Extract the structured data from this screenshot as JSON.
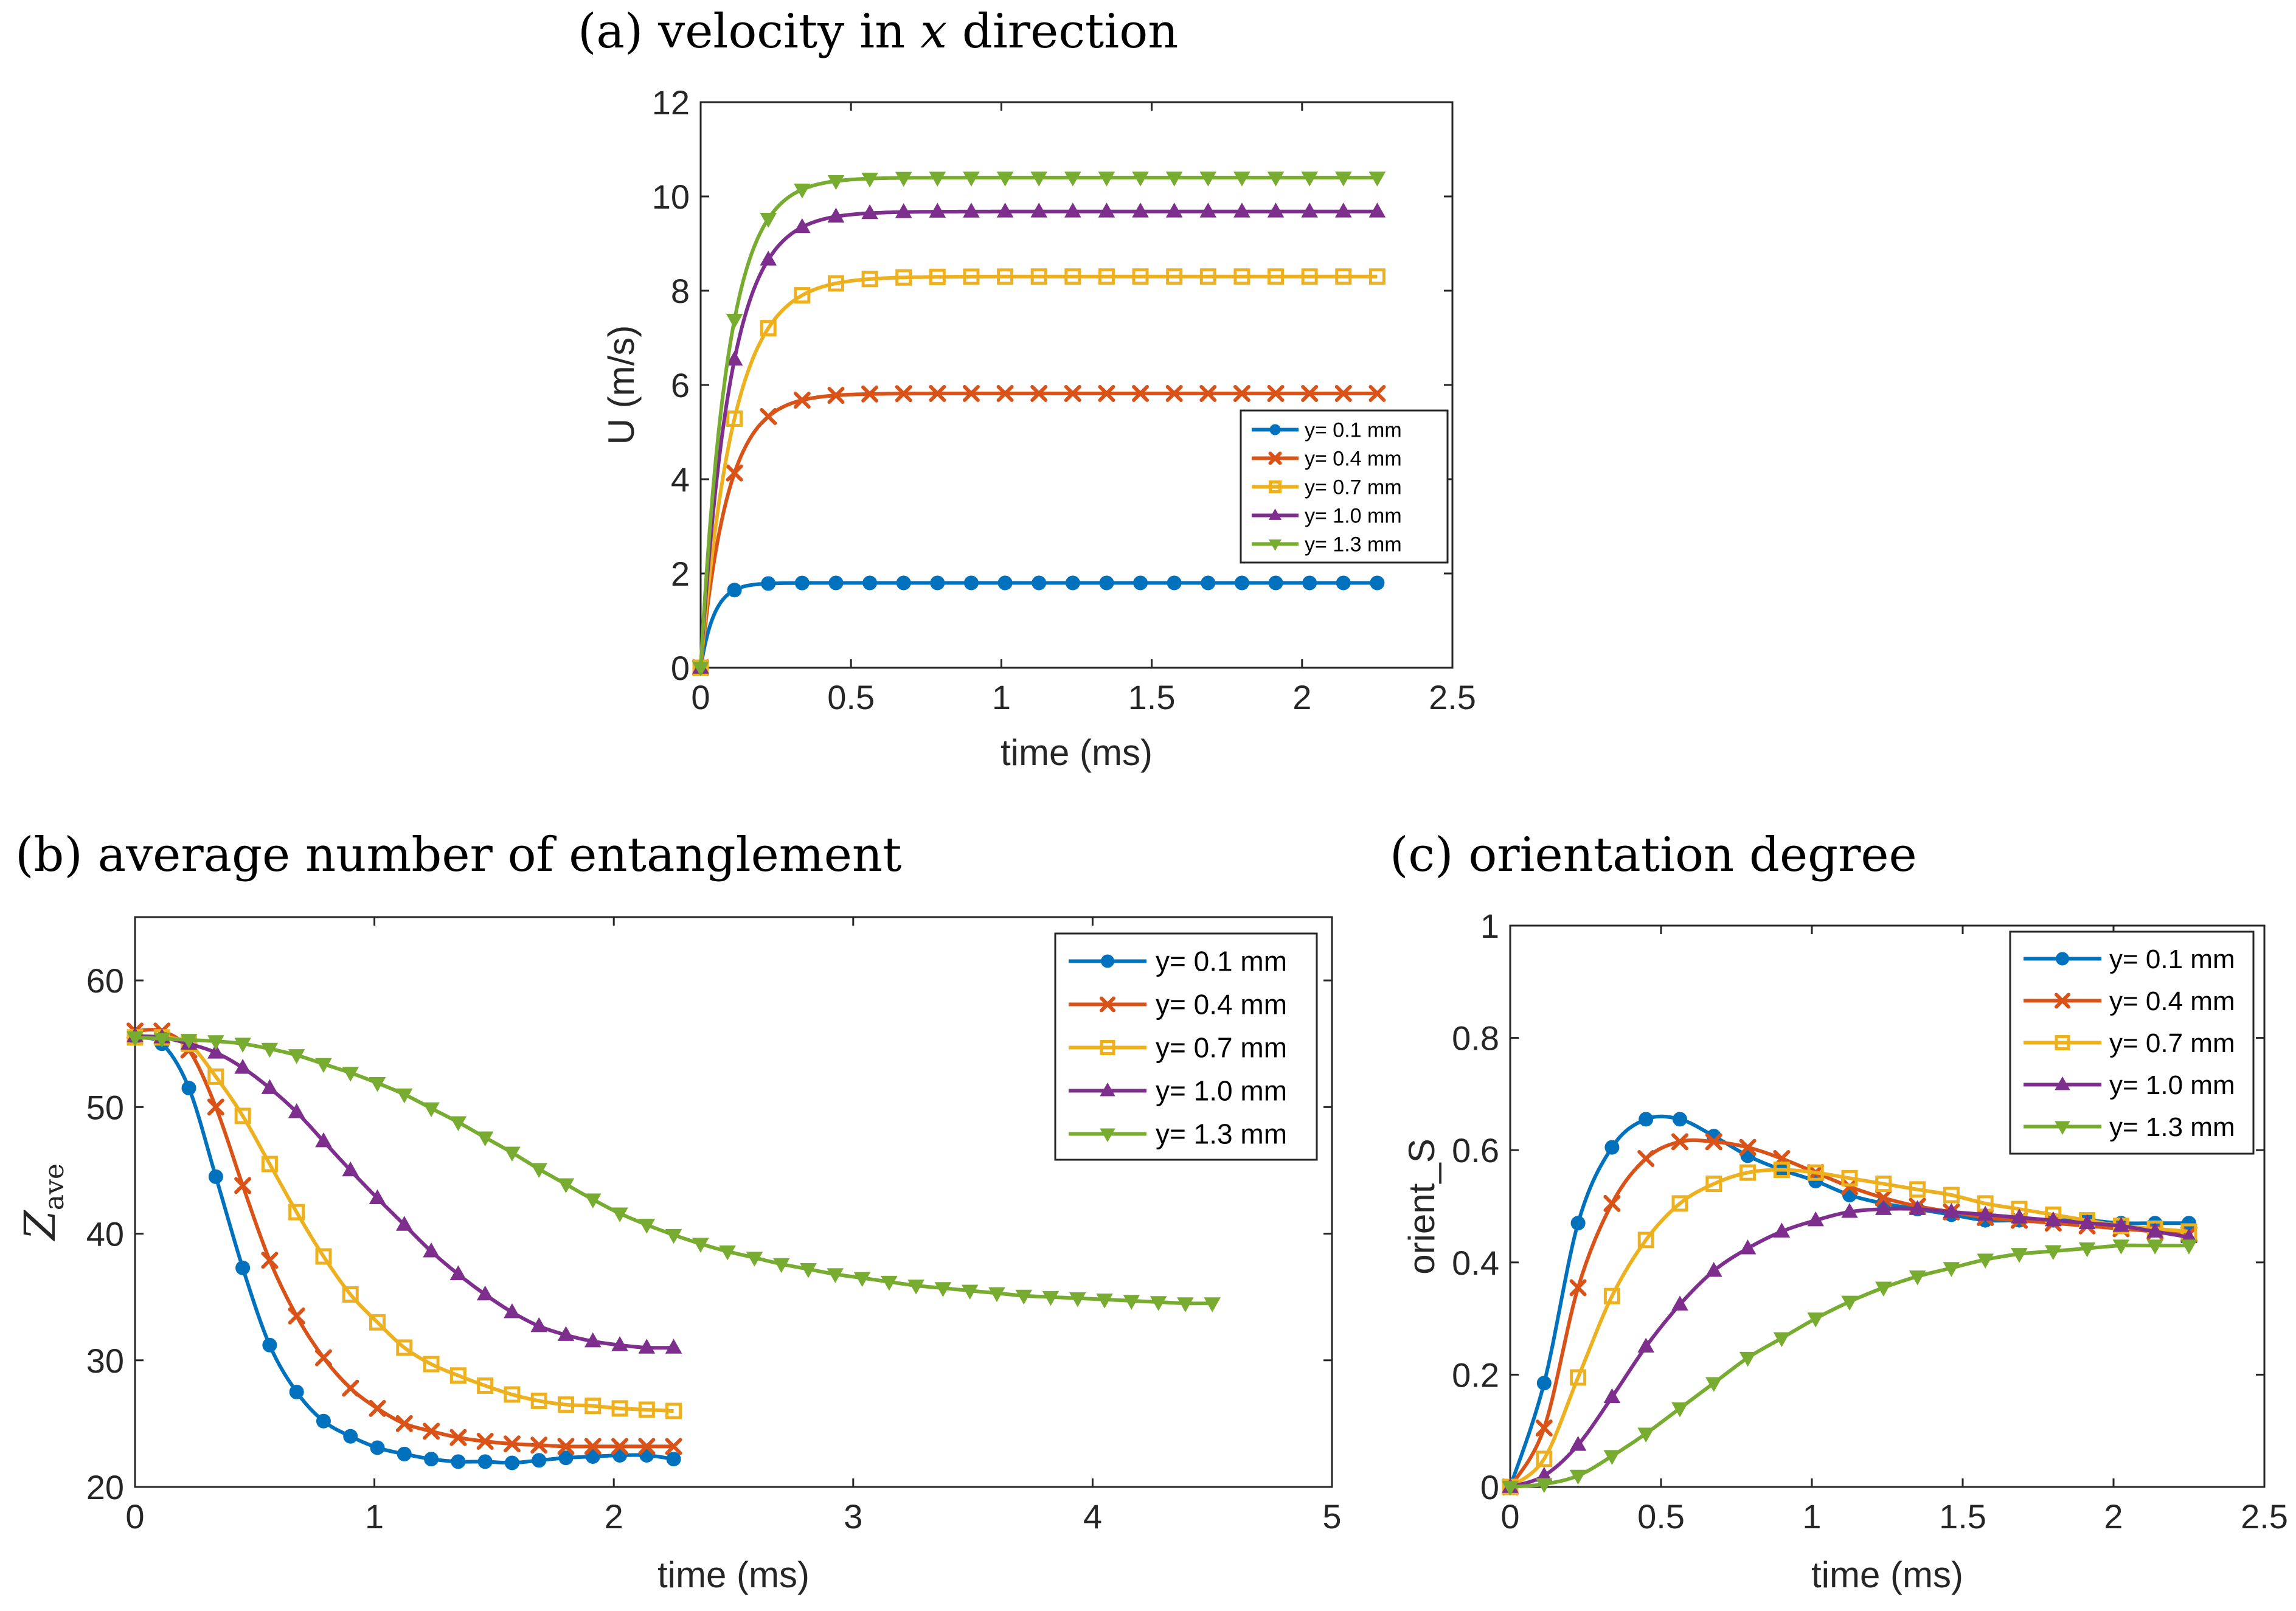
{
  "colors": {
    "series_0_1": "#0072BD",
    "series_0_4": "#D95319",
    "series_0_7": "#EDB120",
    "series_1_0": "#7E2F8E",
    "series_1_3": "#77AC30",
    "axis": "#262626",
    "background": "#FFFFFF"
  },
  "chart_data": [
    {
      "id": "a",
      "type": "line",
      "title_main": "(a) velocity in ",
      "title_var": "x",
      "title_tail": " direction",
      "xlabel": "time (ms)",
      "ylabel": "U (m/s)",
      "xlim": [
        0,
        2.5
      ],
      "ylim": [
        0,
        12
      ],
      "xticks": [
        0,
        0.5,
        1,
        1.5,
        2,
        2.5
      ],
      "xtick_labels": [
        "0",
        "0.5",
        "1",
        "1.5",
        "2",
        "2.5"
      ],
      "yticks": [
        0,
        2,
        4,
        6,
        8,
        10,
        12
      ],
      "ytick_labels": [
        "0",
        "2",
        "4",
        "6",
        "8",
        "10",
        "12"
      ],
      "grid": false,
      "legend_position": "lower-right",
      "series": [
        {
          "name": "y= 0.1 mm",
          "marker": "circle",
          "plateau": 1.8,
          "k": 22,
          "x_end": 2.25,
          "interval": 0.1125
        },
        {
          "name": "y= 0.4 mm",
          "marker": "x",
          "plateau": 5.82,
          "k": 11,
          "x_end": 2.25,
          "interval": 0.1125
        },
        {
          "name": "y= 0.7 mm",
          "marker": "square",
          "plateau": 8.3,
          "k": 9,
          "x_end": 2.25,
          "interval": 0.1125
        },
        {
          "name": "y= 1.0 mm",
          "marker": "triangle-up",
          "plateau": 9.68,
          "k": 10,
          "x_end": 2.25,
          "interval": 0.1125
        },
        {
          "name": "y= 1.3 mm",
          "marker": "triangle-down",
          "plateau": 10.4,
          "k": 11,
          "x_end": 2.25,
          "interval": 0.1125
        }
      ]
    },
    {
      "id": "b",
      "type": "line",
      "title": "(b) average number of entanglement",
      "xlabel": "time (ms)",
      "ylabel_main": "Z",
      "ylabel_sub": "ave",
      "xlim": [
        0,
        5
      ],
      "ylim": [
        20,
        65
      ],
      "xticks": [
        0,
        1,
        2,
        3,
        4,
        5
      ],
      "xtick_labels": [
        "0",
        "1",
        "2",
        "3",
        "4",
        "5"
      ],
      "yticks": [
        20,
        30,
        40,
        50,
        60
      ],
      "ytick_labels": [
        "20",
        "30",
        "40",
        "50",
        "60"
      ],
      "grid": false,
      "legend_position": "top-right",
      "series": [
        {
          "name": "y= 0.1 mm",
          "marker": "circle",
          "x_end": 2.25,
          "interval": 0.1125,
          "x": [
            0,
            0.1125,
            0.225,
            0.3375,
            0.45,
            0.5625,
            0.675,
            0.7875,
            0.9,
            1.0125,
            1.125,
            1.2375,
            1.35,
            1.4625,
            1.575,
            1.6875,
            1.8,
            1.9125,
            2.025,
            2.1375,
            2.25
          ],
          "values": [
            55.5,
            55,
            51.5,
            44.5,
            37.3,
            31.2,
            27.5,
            25.2,
            24,
            23.1,
            22.6,
            22.2,
            22,
            22,
            21.9,
            22.1,
            22.3,
            22.4,
            22.5,
            22.5,
            22.2
          ]
        },
        {
          "name": "y= 0.4 mm",
          "marker": "x",
          "x_end": 2.25,
          "interval": 0.1125,
          "x": [
            0,
            0.1125,
            0.225,
            0.3375,
            0.45,
            0.5625,
            0.675,
            0.7875,
            0.9,
            1.0125,
            1.125,
            1.2375,
            1.35,
            1.4625,
            1.575,
            1.6875,
            1.8,
            1.9125,
            2.025,
            2.1375,
            2.25
          ],
          "values": [
            56,
            56,
            54.5,
            50,
            43.8,
            37.9,
            33.5,
            30.2,
            27.8,
            26.2,
            25,
            24.4,
            23.9,
            23.6,
            23.4,
            23.3,
            23.2,
            23.2,
            23.2,
            23.2,
            23.2
          ]
        },
        {
          "name": "y= 0.7 mm",
          "marker": "square",
          "x_end": 2.25,
          "interval": 0.1125,
          "x": [
            0,
            0.1125,
            0.225,
            0.3375,
            0.45,
            0.5625,
            0.675,
            0.7875,
            0.9,
            1.0125,
            1.125,
            1.2375,
            1.35,
            1.4625,
            1.575,
            1.6875,
            1.8,
            1.9125,
            2.025,
            2.1375,
            2.25
          ],
          "values": [
            55.5,
            55.5,
            55,
            52.4,
            49.3,
            45.5,
            41.7,
            38.2,
            35.2,
            33,
            31,
            29.7,
            28.8,
            28,
            27.3,
            26.8,
            26.5,
            26.4,
            26.2,
            26.1,
            26
          ]
        },
        {
          "name": "y= 1.0 mm",
          "marker": "triangle-up",
          "x_end": 2.25,
          "interval": 0.1125,
          "x": [
            0,
            0.1125,
            0.225,
            0.3375,
            0.45,
            0.5625,
            0.675,
            0.7875,
            0.9,
            1.0125,
            1.125,
            1.2375,
            1.35,
            1.4625,
            1.575,
            1.6875,
            1.8,
            1.9125,
            2.025,
            2.1375,
            2.25
          ],
          "values": [
            55.6,
            55.5,
            55,
            54.3,
            53.1,
            51.5,
            49.6,
            47.3,
            45,
            42.8,
            40.7,
            38.6,
            36.8,
            35.2,
            33.8,
            32.7,
            32,
            31.5,
            31.2,
            31,
            31
          ]
        },
        {
          "name": "y= 1.3 mm",
          "marker": "triangle-down",
          "x_end": 4.5,
          "interval": 0.1125,
          "x": [
            0,
            0.1125,
            0.225,
            0.3375,
            0.45,
            0.5625,
            0.675,
            0.7875,
            0.9,
            1.0125,
            1.125,
            1.2375,
            1.35,
            1.4625,
            1.575,
            1.6875,
            1.8,
            1.9125,
            2.025,
            2.1375,
            2.25,
            2.3625,
            2.475,
            2.5875,
            2.7,
            2.8125,
            2.925,
            3.0375,
            3.15,
            3.2625,
            3.375,
            3.4875,
            3.6,
            3.7125,
            3.825,
            3.9375,
            4.05,
            4.1625,
            4.275,
            4.3875,
            4.5
          ],
          "values": [
            55.5,
            55.4,
            55.3,
            55.2,
            55,
            54.6,
            54.1,
            53.4,
            52.7,
            51.9,
            51,
            49.9,
            48.8,
            47.6,
            46.4,
            45.1,
            43.9,
            42.7,
            41.6,
            40.7,
            39.9,
            39.2,
            38.6,
            38.1,
            37.6,
            37.2,
            36.8,
            36.5,
            36.2,
            35.9,
            35.7,
            35.5,
            35.3,
            35.1,
            35,
            34.9,
            34.8,
            34.7,
            34.6,
            34.5,
            34.5
          ]
        }
      ]
    },
    {
      "id": "c",
      "type": "line",
      "title": "(c) orientation degree",
      "xlabel": "time (ms)",
      "ylabel": "orient_S",
      "xlim": [
        0,
        2.5
      ],
      "ylim": [
        0,
        1
      ],
      "xticks": [
        0,
        0.5,
        1,
        1.5,
        2,
        2.5
      ],
      "xtick_labels": [
        "0",
        "0.5",
        "1",
        "1.5",
        "2",
        "2.5"
      ],
      "yticks": [
        0,
        0.2,
        0.4,
        0.6,
        0.8,
        1
      ],
      "ytick_labels": [
        "0",
        "0.2",
        "0.4",
        "0.6",
        "0.8",
        "1"
      ],
      "grid": false,
      "legend_position": "top-right",
      "series": [
        {
          "name": "y= 0.1 mm",
          "marker": "circle",
          "x_end": 2.25,
          "interval": 0.1125,
          "x": [
            0,
            0.1125,
            0.225,
            0.3375,
            0.45,
            0.5625,
            0.675,
            0.7875,
            0.9,
            1.0125,
            1.125,
            1.2375,
            1.35,
            1.4625,
            1.575,
            1.6875,
            1.8,
            1.9125,
            2.025,
            2.1375,
            2.25
          ],
          "values": [
            0,
            0.185,
            0.47,
            0.605,
            0.655,
            0.655,
            0.625,
            0.59,
            0.565,
            0.545,
            0.52,
            0.505,
            0.495,
            0.485,
            0.475,
            0.475,
            0.475,
            0.475,
            0.47,
            0.47,
            0.47
          ]
        },
        {
          "name": "y= 0.4 mm",
          "marker": "x",
          "x_end": 2.25,
          "interval": 0.1125,
          "x": [
            0,
            0.1125,
            0.225,
            0.3375,
            0.45,
            0.5625,
            0.675,
            0.7875,
            0.9,
            1.0125,
            1.125,
            1.2375,
            1.35,
            1.4625,
            1.575,
            1.6875,
            1.8,
            1.9125,
            2.025,
            2.1375,
            2.25
          ],
          "values": [
            0,
            0.105,
            0.355,
            0.505,
            0.585,
            0.615,
            0.615,
            0.605,
            0.585,
            0.56,
            0.535,
            0.515,
            0.5,
            0.49,
            0.48,
            0.475,
            0.47,
            0.465,
            0.46,
            0.455,
            0.45
          ]
        },
        {
          "name": "y= 0.7 mm",
          "marker": "square",
          "x_end": 2.25,
          "interval": 0.1125,
          "x": [
            0,
            0.1125,
            0.225,
            0.3375,
            0.45,
            0.5625,
            0.675,
            0.7875,
            0.9,
            1.0125,
            1.125,
            1.2375,
            1.35,
            1.4625,
            1.575,
            1.6875,
            1.8,
            1.9125,
            2.025,
            2.1375,
            2.25
          ],
          "values": [
            0,
            0.05,
            0.195,
            0.34,
            0.44,
            0.505,
            0.54,
            0.56,
            0.565,
            0.56,
            0.55,
            0.54,
            0.53,
            0.52,
            0.505,
            0.495,
            0.485,
            0.475,
            0.465,
            0.46,
            0.455
          ]
        },
        {
          "name": "y= 1.0 mm",
          "marker": "triangle-up",
          "x_end": 2.25,
          "interval": 0.1125,
          "x": [
            0,
            0.1125,
            0.225,
            0.3375,
            0.45,
            0.5625,
            0.675,
            0.7875,
            0.9,
            1.0125,
            1.125,
            1.2375,
            1.35,
            1.4625,
            1.575,
            1.6875,
            1.8,
            1.9125,
            2.025,
            2.1375,
            2.25
          ],
          "values": [
            0,
            0.02,
            0.075,
            0.16,
            0.25,
            0.325,
            0.385,
            0.425,
            0.455,
            0.475,
            0.49,
            0.495,
            0.495,
            0.49,
            0.485,
            0.48,
            0.475,
            0.47,
            0.465,
            0.455,
            0.445
          ]
        },
        {
          "name": "y= 1.3 mm",
          "marker": "triangle-down",
          "x_end": 2.25,
          "interval": 0.1125,
          "x": [
            0,
            0.1125,
            0.225,
            0.3375,
            0.45,
            0.5625,
            0.675,
            0.7875,
            0.9,
            1.0125,
            1.125,
            1.2375,
            1.35,
            1.4625,
            1.575,
            1.6875,
            1.8,
            1.9125,
            2.025,
            2.1375,
            2.25
          ],
          "values": [
            0,
            0.005,
            0.02,
            0.055,
            0.095,
            0.14,
            0.185,
            0.23,
            0.265,
            0.3,
            0.33,
            0.355,
            0.375,
            0.39,
            0.405,
            0.415,
            0.42,
            0.425,
            0.43,
            0.43,
            0.43
          ]
        }
      ]
    }
  ]
}
